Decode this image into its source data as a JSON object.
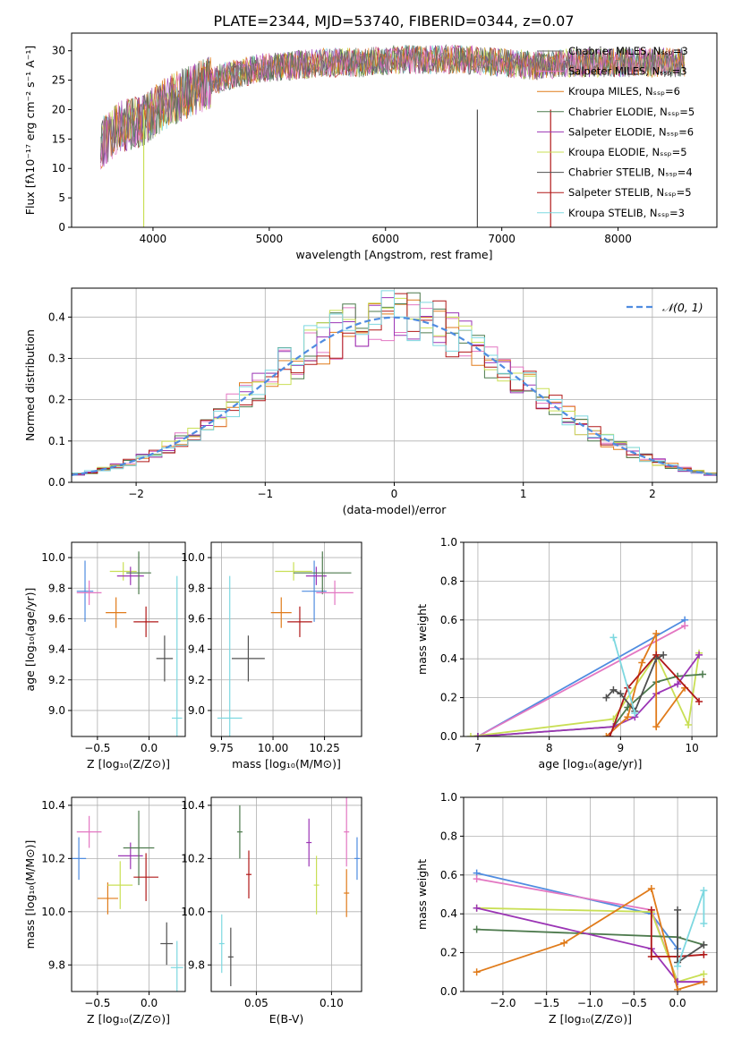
{
  "figure_title": "PLATE=2344, MJD=53740, FIBERID=0344, z=0.07",
  "chart_data": [
    {
      "id": "spectrum",
      "type": "line",
      "xlabel": "wavelength [Angstrom, rest frame]",
      "ylabel": "Flux [fλ10⁻¹⁷ erg cm⁻² s⁻¹ A⁻¹]",
      "xlim": [
        3300,
        8850
      ],
      "ylim": [
        0,
        33
      ],
      "xticks": [
        4000,
        5000,
        6000,
        7000,
        8000
      ],
      "yticks": [
        0,
        5,
        10,
        15,
        20,
        25,
        30
      ],
      "grid": false,
      "legend_position": "right",
      "legend": [
        "Chabrier MILES, Nₛₛₚ=3",
        "Salpeter MILES, Nₛₛₚ=3",
        "Kroupa MILES, Nₛₛₚ=6",
        "Chabrier ELODIE, Nₛₛₚ=5",
        "Salpeter ELODIE, Nₛₛₚ=6",
        "Kroupa ELODIE, Nₛₛₚ=5",
        "Chabrier STELIB, Nₛₛₚ=4",
        "Salpeter STELIB, Nₛₛₚ=5",
        "Kroupa STELIB, Nₛₛₚ=3"
      ],
      "series_colors": [
        "#6b6b6b",
        "#e377c2",
        "#e07b1a",
        "#4d7a4d",
        "#9b35b5",
        "#c9df55",
        "#505050",
        "#b01818",
        "#7dd8e0"
      ],
      "continuum_x": [
        3550,
        3700,
        3900,
        4100,
        4300,
        4600,
        4900,
        5200,
        5500,
        5800,
        6100,
        6400,
        6700,
        7000,
        7300,
        7600,
        7900,
        8200,
        8500
      ],
      "continuum_y": [
        14,
        17,
        18,
        21,
        23,
        25.5,
        27,
        27.5,
        28,
        28,
        28.5,
        28.5,
        28.5,
        28,
        27.5,
        28,
        28,
        28,
        28
      ]
    },
    {
      "id": "residuals",
      "type": "histogram",
      "xlabel": "(data-model)/error",
      "ylabel": "Normed distribution",
      "xlim": [
        -2.5,
        2.5
      ],
      "ylim": [
        0,
        0.47
      ],
      "xticks": [
        -2,
        -1,
        0,
        1,
        2
      ],
      "yticks": [
        0.0,
        0.1,
        0.2,
        0.3,
        0.4
      ],
      "grid": true,
      "legend_position": "top-right",
      "legend_label": "𝒩(0, 1)",
      "bin_width": 0.1,
      "gaussian": {
        "mean": 0,
        "sigma": 1,
        "color": "#4f8ce0"
      },
      "series_colors": [
        "#e377c2",
        "#e07b1a",
        "#4d7a4d",
        "#9b35b5",
        "#c9df55",
        "#b01818",
        "#7dd8e0"
      ]
    },
    {
      "id": "age-vs-Z",
      "type": "scatter",
      "xlabel": "Z [log₁₀(Z/Z⊙)]",
      "ylabel": "age  [log₁₀(age/yr)]",
      "xlim": [
        -0.75,
        0.35
      ],
      "ylim": [
        8.83,
        10.1
      ],
      "xticks": [
        -0.5,
        0.0
      ],
      "yticks": [
        9.0,
        9.2,
        9.4,
        9.6,
        9.8,
        10.0
      ],
      "grid": true,
      "points": [
        {
          "x": -0.62,
          "y": 9.78,
          "xerr": 0.08,
          "yerr": 0.2,
          "color": "#4f8ce0"
        },
        {
          "x": -0.58,
          "y": 9.77,
          "xerr": 0.12,
          "yerr": 0.08,
          "color": "#e377c2"
        },
        {
          "x": -0.32,
          "y": 9.64,
          "xerr": 0.1,
          "yerr": 0.1,
          "color": "#e07b1a"
        },
        {
          "x": -0.25,
          "y": 9.91,
          "xerr": 0.13,
          "yerr": 0.06,
          "color": "#c9df55"
        },
        {
          "x": -0.18,
          "y": 9.88,
          "xerr": 0.13,
          "yerr": 0.06,
          "color": "#9b35b5"
        },
        {
          "x": -0.1,
          "y": 9.9,
          "xerr": 0.12,
          "yerr": 0.14,
          "color": "#4d7a4d"
        },
        {
          "x": -0.03,
          "y": 9.58,
          "xerr": 0.12,
          "yerr": 0.1,
          "color": "#b01818"
        },
        {
          "x": 0.15,
          "y": 9.34,
          "xerr": 0.08,
          "yerr": 0.15,
          "color": "#505050"
        },
        {
          "x": 0.27,
          "y": 8.95,
          "xerr": 0.05,
          "yerr": 0.93,
          "color": "#7dd8e0"
        }
      ]
    },
    {
      "id": "age-vs-mass",
      "type": "scatter",
      "xlabel": "mass [log₁₀(M/M⊙)]",
      "ylabel": "",
      "xlim": [
        9.7,
        10.43
      ],
      "ylim": [
        8.83,
        10.1
      ],
      "xticks": [
        9.75,
        10.0,
        10.25
      ],
      "yticks": [
        9.0,
        9.2,
        9.4,
        9.6,
        9.8,
        10.0
      ],
      "grid": true,
      "points": [
        {
          "x": 9.79,
          "y": 8.95,
          "xerr": 0.06,
          "yerr": 0.93,
          "color": "#7dd8e0"
        },
        {
          "x": 9.88,
          "y": 9.34,
          "xerr": 0.08,
          "yerr": 0.15,
          "color": "#505050"
        },
        {
          "x": 10.04,
          "y": 9.64,
          "xerr": 0.05,
          "yerr": 0.1,
          "color": "#e07b1a"
        },
        {
          "x": 10.1,
          "y": 9.91,
          "xerr": 0.09,
          "yerr": 0.06,
          "color": "#c9df55"
        },
        {
          "x": 10.13,
          "y": 9.58,
          "xerr": 0.06,
          "yerr": 0.1,
          "color": "#b01818"
        },
        {
          "x": 10.2,
          "y": 9.78,
          "xerr": 0.06,
          "yerr": 0.2,
          "color": "#4f8ce0"
        },
        {
          "x": 10.21,
          "y": 9.88,
          "xerr": 0.05,
          "yerr": 0.06,
          "color": "#9b35b5"
        },
        {
          "x": 10.24,
          "y": 9.9,
          "xerr": 0.14,
          "yerr": 0.14,
          "color": "#4d7a4d"
        },
        {
          "x": 10.3,
          "y": 9.77,
          "xerr": 0.09,
          "yerr": 0.08,
          "color": "#e377c2"
        }
      ]
    },
    {
      "id": "weight-vs-age",
      "type": "line",
      "xlabel": "age  [log₁₀(age/yr)]",
      "ylabel": "mass weight",
      "xlim": [
        6.8,
        10.35
      ],
      "ylim": [
        0,
        1.0
      ],
      "xticks": [
        7,
        8,
        9,
        10
      ],
      "yticks": [
        0.0,
        0.2,
        0.4,
        0.6,
        0.8,
        1.0
      ],
      "grid": true,
      "series": [
        {
          "color": "#4f8ce0",
          "x": [
            7.0,
            9.9
          ],
          "y": [
            0.0,
            0.6
          ]
        },
        {
          "color": "#e377c2",
          "x": [
            7.0,
            9.9
          ],
          "y": [
            0.0,
            0.57
          ]
        },
        {
          "color": "#c9df55",
          "x": [
            6.9,
            8.9,
            9.5,
            9.95,
            10.1
          ],
          "y": [
            0.0,
            0.09,
            0.42,
            0.06,
            0.43
          ]
        },
        {
          "color": "#4d7a4d",
          "x": [
            7.0,
            8.9,
            9.1,
            9.5,
            9.8,
            10.15
          ],
          "y": [
            0.0,
            0.05,
            0.15,
            0.28,
            0.31,
            0.32
          ]
        },
        {
          "color": "#9b35b5",
          "x": [
            7.0,
            8.9,
            9.2,
            9.5,
            9.8,
            10.1
          ],
          "y": [
            0.0,
            0.05,
            0.1,
            0.22,
            0.27,
            0.42
          ]
        },
        {
          "color": "#e07b1a",
          "x": [
            8.8,
            9.1,
            9.3,
            9.5,
            9.5,
            9.9
          ],
          "y": [
            0.0,
            0.1,
            0.38,
            0.53,
            0.05,
            0.25
          ]
        },
        {
          "color": "#b01818",
          "x": [
            8.85,
            9.1,
            9.5,
            10.1
          ],
          "y": [
            0.0,
            0.25,
            0.42,
            0.18
          ]
        },
        {
          "color": "#505050",
          "x": [
            8.8,
            8.9,
            9.0,
            9.2,
            9.5,
            9.6
          ],
          "y": [
            0.2,
            0.24,
            0.22,
            0.13,
            0.4,
            0.42
          ]
        },
        {
          "color": "#7dd8e0",
          "x": [
            8.9,
            9.2
          ],
          "y": [
            0.51,
            0.12
          ]
        }
      ]
    },
    {
      "id": "mass-vs-Z",
      "type": "scatter",
      "xlabel": "Z [log₁₀(Z/Z⊙)]",
      "ylabel": "mass [log₁₀(M/M⊙)]",
      "xlim": [
        -0.75,
        0.35
      ],
      "ylim": [
        9.7,
        10.43
      ],
      "xticks": [
        -0.5,
        0.0
      ],
      "yticks": [
        9.8,
        10.0,
        10.2,
        10.4
      ],
      "grid": true,
      "points": [
        {
          "x": -0.68,
          "y": 10.2,
          "xerr": 0.07,
          "yerr": 0.08,
          "color": "#4f8ce0"
        },
        {
          "x": -0.58,
          "y": 10.3,
          "xerr": 0.12,
          "yerr": 0.06,
          "color": "#e377c2"
        },
        {
          "x": -0.4,
          "y": 10.05,
          "xerr": 0.1,
          "yerr": 0.06,
          "color": "#e07b1a"
        },
        {
          "x": -0.28,
          "y": 10.1,
          "xerr": 0.12,
          "yerr": 0.09,
          "color": "#c9df55"
        },
        {
          "x": -0.18,
          "y": 10.21,
          "xerr": 0.12,
          "yerr": 0.05,
          "color": "#9b35b5"
        },
        {
          "x": -0.1,
          "y": 10.24,
          "xerr": 0.15,
          "yerr": 0.14,
          "color": "#4d7a4d"
        },
        {
          "x": -0.03,
          "y": 10.13,
          "xerr": 0.12,
          "yerr": 0.09,
          "color": "#b01818"
        },
        {
          "x": 0.17,
          "y": 9.88,
          "xerr": 0.06,
          "yerr": 0.08,
          "color": "#505050"
        },
        {
          "x": 0.27,
          "y": 9.79,
          "xerr": 0.06,
          "yerr": 0.1,
          "color": "#7dd8e0"
        }
      ]
    },
    {
      "id": "mass-vs-EBV",
      "type": "scatter",
      "xlabel": "E(B-V)",
      "ylabel": "",
      "xlim": [
        0.02,
        0.12
      ],
      "ylim": [
        9.7,
        10.43
      ],
      "xticks": [
        0.05,
        0.1
      ],
      "yticks": [
        9.8,
        10.0,
        10.2,
        10.4
      ],
      "grid": true,
      "points": [
        {
          "x": 0.027,
          "y": 9.88,
          "xerr": 0,
          "yerr": 0.11,
          "color": "#7dd8e0"
        },
        {
          "x": 0.033,
          "y": 9.83,
          "xerr": 0,
          "yerr": 0.11,
          "color": "#505050"
        },
        {
          "x": 0.039,
          "y": 10.3,
          "xerr": 0,
          "yerr": 0.1,
          "color": "#4d7a4d"
        },
        {
          "x": 0.045,
          "y": 10.14,
          "xerr": 0,
          "yerr": 0.09,
          "color": "#b01818"
        },
        {
          "x": 0.085,
          "y": 10.26,
          "xerr": 0,
          "yerr": 0.09,
          "color": "#9b35b5"
        },
        {
          "x": 0.09,
          "y": 10.1,
          "xerr": 0,
          "yerr": 0.11,
          "color": "#c9df55"
        },
        {
          "x": 0.11,
          "y": 10.07,
          "xerr": 0,
          "yerr": 0.09,
          "color": "#e07b1a"
        },
        {
          "x": 0.11,
          "y": 10.3,
          "xerr": 0,
          "yerr": 0.13,
          "color": "#e377c2"
        },
        {
          "x": 0.117,
          "y": 10.2,
          "xerr": 0,
          "yerr": 0.08,
          "color": "#4f8ce0"
        }
      ]
    },
    {
      "id": "weight-vs-Z",
      "type": "line",
      "xlabel": "Z [log₁₀(Z/Z⊙)]",
      "ylabel": "mass weight",
      "xlim": [
        -2.45,
        0.45
      ],
      "ylim": [
        0,
        1.0
      ],
      "xticks": [
        -2.0,
        -1.5,
        -1.0,
        -0.5,
        0.0
      ],
      "yticks": [
        0.0,
        0.2,
        0.4,
        0.6,
        0.8,
        1.0
      ],
      "grid": true,
      "series": [
        {
          "color": "#4f8ce0",
          "x": [
            -2.3,
            -0.3,
            0.0
          ],
          "y": [
            0.61,
            0.4,
            0.22
          ]
        },
        {
          "color": "#e377c2",
          "x": [
            -2.3,
            -0.3,
            0.0,
            0.3
          ],
          "y": [
            0.58,
            0.42,
            0.05,
            0.05
          ]
        },
        {
          "color": "#c9df55",
          "x": [
            -2.3,
            -0.3,
            0.0,
            0.3
          ],
          "y": [
            0.43,
            0.41,
            0.05,
            0.09
          ]
        },
        {
          "color": "#4d7a4d",
          "x": [
            -2.3,
            0.0,
            0.3
          ],
          "y": [
            0.32,
            0.28,
            0.24
          ]
        },
        {
          "color": "#9b35b5",
          "x": [
            -2.3,
            -0.3,
            0.0,
            0.3
          ],
          "y": [
            0.43,
            0.22,
            0.05,
            0.05
          ]
        },
        {
          "color": "#e07b1a",
          "x": [
            -2.3,
            -1.3,
            -0.3,
            0.0,
            0.3
          ],
          "y": [
            0.1,
            0.25,
            0.53,
            0.01,
            0.05
          ]
        },
        {
          "color": "#b01818",
          "x": [
            -0.3,
            -0.3,
            0.0,
            0.3
          ],
          "y": [
            0.42,
            0.18,
            0.18,
            0.19
          ]
        },
        {
          "color": "#505050",
          "x": [
            0.0,
            0.0,
            0.3
          ],
          "y": [
            0.42,
            0.15,
            0.24
          ]
        },
        {
          "color": "#7dd8e0",
          "x": [
            0.0,
            0.3,
            0.3
          ],
          "y": [
            0.13,
            0.52,
            0.35
          ]
        }
      ]
    }
  ]
}
